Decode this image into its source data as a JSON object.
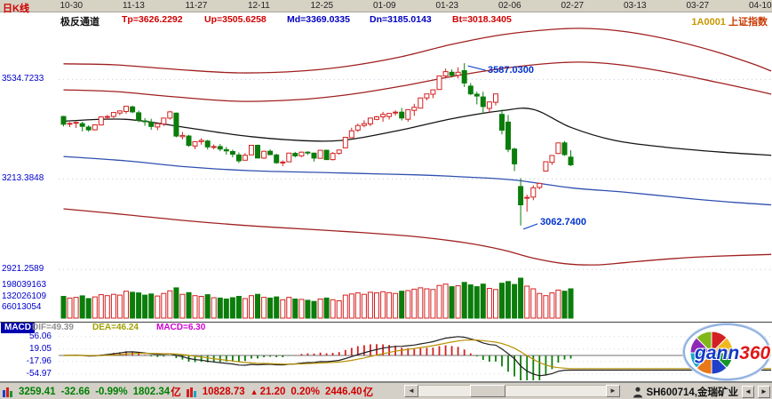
{
  "header": {
    "chart_type_label": "日K线",
    "index_code": "1A0001",
    "index_name": "上证指数"
  },
  "indicator_bar": {
    "name": "极反通道",
    "values": [
      {
        "label": "Tp=3626.2292",
        "color": "#d00000"
      },
      {
        "label": "Up=3505.6258",
        "color": "#d00000"
      },
      {
        "label": "Md=3369.0335",
        "color": "#0000c0"
      },
      {
        "label": "Dn=3185.0143",
        "color": "#0000c0"
      },
      {
        "label": "Bt=3018.3405",
        "color": "#d00000"
      }
    ]
  },
  "annotations": {
    "high": "3587.0300",
    "low": "3062.7400"
  },
  "macd_panel": {
    "label": "MACD",
    "dif_label": "DIF=49.39",
    "dea_label": "DEA=46.24",
    "macd_label": "MACD=6.30"
  },
  "status_bar": {
    "index1": {
      "price": "3259.41",
      "change": "-32.66",
      "pct": "-0.99%",
      "amount": "1802.34",
      "unit": "亿"
    },
    "index2": {
      "price": "10828.73",
      "arrow": "▲",
      "change": "21.20",
      "pct": "0.20%",
      "amount": "2446.40",
      "unit": "亿"
    },
    "scrollbar": {
      "left_arrow": "◄",
      "right_arrow": "►"
    },
    "stock": "SH600714,金瑞矿业",
    "nav_buttons": {
      "prev": "◄",
      "next": "►"
    }
  },
  "logo": {
    "text1": "gann",
    "text2": "360",
    "wheel_colors": [
      "#d42020",
      "#f0b820",
      "#18962e",
      "#2040c8",
      "#e87818",
      "#18a8c8",
      "#9028b8",
      "#80b818"
    ]
  },
  "chart_data": {
    "type": "candlestick",
    "title": "1A0001 上证指数 日K线",
    "tick_dates": [
      "10-30",
      "11-13",
      "11-27",
      "12-11",
      "12-25",
      "01-09",
      "01-23",
      "02-06",
      "02-27",
      "03-13",
      "03-27",
      "04-10"
    ],
    "price_ticks": [
      3534.7233,
      3213.3848,
      2921.2589
    ],
    "volume_ticks": [
      198039163,
      132026109,
      66013054
    ],
    "macd_ticks": [
      56.06,
      19.05,
      -17.96,
      -54.97
    ],
    "ylim": [
      2896,
      3705
    ],
    "volume_ylim": [
      0,
      240000000
    ],
    "macd_ylim": [
      -80,
      90
    ],
    "annotated_high": 3587.03,
    "annotated_low": 3062.74,
    "legend": "极反通道: Tp/Up/Md/Dn/Bt channel lines over daily candles, volume and MACD subpanels",
    "columns": [
      "open",
      "high",
      "low",
      "close",
      "volume"
    ],
    "candles": [
      [
        3415,
        3417,
        3383,
        3390,
        128000000.0
      ],
      [
        3390,
        3397,
        3381,
        3393,
        118000000.0
      ],
      [
        3395,
        3399,
        3378,
        3396,
        122000000.0
      ],
      [
        3392,
        3398,
        3367,
        3383,
        131000000.0
      ],
      [
        3381,
        3387,
        3366,
        3372,
        115000000.0
      ],
      [
        3372,
        3389,
        3370,
        3388,
        125000000.0
      ],
      [
        3388,
        3414,
        3386,
        3414,
        138000000.0
      ],
      [
        3412,
        3420,
        3405,
        3415,
        132000000.0
      ],
      [
        3415,
        3429,
        3410,
        3428,
        140000000.0
      ],
      [
        3426,
        3434,
        3419,
        3433,
        135000000.0
      ],
      [
        3431,
        3449,
        3424,
        3448,
        158000000.0
      ],
      [
        3446,
        3450,
        3426,
        3430,
        152000000.0
      ],
      [
        3427,
        3434,
        3397,
        3403,
        148000000.0
      ],
      [
        3401,
        3410,
        3385,
        3399,
        135000000.0
      ],
      [
        3397,
        3408,
        3372,
        3383,
        142000000.0
      ],
      [
        3381,
        3393,
        3371,
        3392,
        130000000.0
      ],
      [
        3391,
        3411,
        3384,
        3410,
        145000000.0
      ],
      [
        3410,
        3433,
        3405,
        3430,
        160000000.0
      ],
      [
        3426,
        3428,
        3348,
        3352,
        178000000.0
      ],
      [
        3350,
        3365,
        3341,
        3354,
        140000000.0
      ],
      [
        3352,
        3356,
        3317,
        3322,
        150000000.0
      ],
      [
        3320,
        3335,
        3310,
        3334,
        132000000.0
      ],
      [
        3334,
        3345,
        3324,
        3338,
        128000000.0
      ],
      [
        3336,
        3340,
        3309,
        3317,
        138000000.0
      ],
      [
        3317,
        3325,
        3309,
        3318,
        120000000.0
      ],
      [
        3318,
        3326,
        3303,
        3310,
        118000000.0
      ],
      [
        3308,
        3317,
        3292,
        3304,
        112000000.0
      ],
      [
        3302,
        3308,
        3283,
        3293,
        120000000.0
      ],
      [
        3291,
        3299,
        3265,
        3272,
        128000000.0
      ],
      [
        3274,
        3297,
        3274,
        3290,
        115000000.0
      ],
      [
        3291,
        3323,
        3291,
        3322,
        132000000.0
      ],
      [
        3322,
        3324,
        3280,
        3281,
        140000000.0
      ],
      [
        3281,
        3305,
        3278,
        3303,
        122000000.0
      ],
      [
        3303,
        3309,
        3290,
        3292,
        118000000.0
      ],
      [
        3291,
        3295,
        3262,
        3266,
        125000000.0
      ],
      [
        3266,
        3273,
        3255,
        3268,
        108000000.0
      ],
      [
        3269,
        3298,
        3269,
        3297,
        122000000.0
      ],
      [
        3296,
        3301,
        3283,
        3288,
        112000000.0
      ],
      [
        3288,
        3302,
        3284,
        3300,
        110000000.0
      ],
      [
        3300,
        3303,
        3291,
        3297,
        105000000.0
      ],
      [
        3297,
        3298,
        3270,
        3281,
        98000000.0
      ],
      [
        3280,
        3306,
        3279,
        3306,
        112000000.0
      ],
      [
        3306,
        3308,
        3275,
        3276,
        118000000.0
      ],
      [
        3276,
        3300,
        3273,
        3296,
        108000000.0
      ],
      [
        3296,
        3308,
        3292,
        3307,
        102000000.0
      ],
      [
        3314,
        3349,
        3314,
        3348,
        135000000.0
      ],
      [
        3347,
        3379,
        3345,
        3369,
        142000000.0
      ],
      [
        3371,
        3392,
        3365,
        3386,
        148000000.0
      ],
      [
        3386,
        3403,
        3380,
        3392,
        140000000.0
      ],
      [
        3391,
        3412,
        3384,
        3410,
        152000000.0
      ],
      [
        3406,
        3417,
        3403,
        3414,
        148000000.0
      ],
      [
        3414,
        3430,
        3398,
        3422,
        155000000.0
      ],
      [
        3415,
        3426,
        3405,
        3425,
        150000000.0
      ],
      [
        3428,
        3435,
        3418,
        3429,
        145000000.0
      ],
      [
        3429,
        3443,
        3402,
        3410,
        158000000.0
      ],
      [
        3406,
        3437,
        3398,
        3437,
        162000000.0
      ],
      [
        3435,
        3456,
        3417,
        3445,
        170000000.0
      ],
      [
        3442,
        3475,
        3441,
        3475,
        178000000.0
      ],
      [
        3475,
        3488,
        3467,
        3488,
        172000000.0
      ],
      [
        3487,
        3502,
        3474,
        3501,
        168000000.0
      ],
      [
        3502,
        3547,
        3502,
        3546,
        192000000.0
      ],
      [
        3546,
        3570,
        3542,
        3560,
        200000000.0
      ],
      [
        3558,
        3567,
        3541,
        3548,
        185000000.0
      ],
      [
        3548,
        3574,
        3538,
        3558,
        190000000.0
      ],
      [
        3563,
        3587,
        3510,
        3523,
        210000000.0
      ],
      [
        3513,
        3523,
        3484,
        3488,
        195000000.0
      ],
      [
        3487,
        3495,
        3454,
        3481,
        185000000.0
      ],
      [
        3478,
        3495,
        3424,
        3447,
        200000000.0
      ],
      [
        3441,
        3463,
        3426,
        3462,
        175000000.0
      ],
      [
        3461,
        3488,
        3451,
        3488,
        168000000.0
      ],
      [
        3422,
        3437,
        3357,
        3371,
        205000000.0
      ],
      [
        3397,
        3420,
        3300,
        3309,
        215000000.0
      ],
      [
        3310,
        3314,
        3239,
        3262,
        198000000.0
      ],
      [
        3189,
        3216,
        3063,
        3130,
        235000000.0
      ],
      [
        3151,
        3163,
        3108,
        3154,
        188000000.0
      ],
      [
        3155,
        3193,
        3145,
        3185,
        172000000.0
      ],
      [
        3186,
        3201,
        3180,
        3199,
        145000000.0
      ],
      [
        3239,
        3269,
        3239,
        3269,
        132000000.0
      ],
      [
        3267,
        3290,
        3259,
        3289,
        148000000.0
      ],
      [
        3296,
        3330,
        3294,
        3330,
        165000000.0
      ],
      [
        3330,
        3336,
        3288,
        3292,
        158000000.0
      ],
      [
        3284,
        3306,
        3255,
        3259,
        172000000.0
      ]
    ],
    "channel_lines": {
      "Tp": {
        "color": "#a02020",
        "points": [
          [
            0,
            3585
          ],
          [
            8,
            3582
          ],
          [
            18,
            3567
          ],
          [
            28,
            3556
          ],
          [
            38,
            3562
          ],
          [
            46,
            3579
          ],
          [
            54,
            3608
          ],
          [
            62,
            3648
          ],
          [
            70,
            3679
          ],
          [
            78,
            3696
          ],
          [
            84,
            3699
          ],
          [
            90,
            3688
          ],
          [
            97,
            3662
          ],
          [
            104,
            3625
          ],
          [
            110,
            3585
          ],
          [
            113,
            3562
          ]
        ]
      },
      "Up": {
        "color": "#a02020",
        "points": [
          [
            0,
            3501
          ],
          [
            8,
            3496
          ],
          [
            18,
            3478
          ],
          [
            28,
            3464
          ],
          [
            38,
            3470
          ],
          [
            46,
            3487
          ],
          [
            54,
            3513
          ],
          [
            62,
            3544
          ],
          [
            70,
            3570
          ],
          [
            78,
            3587
          ],
          [
            84,
            3590
          ],
          [
            90,
            3579
          ],
          [
            97,
            3556
          ],
          [
            104,
            3527
          ],
          [
            110,
            3501
          ],
          [
            113,
            3487
          ]
        ]
      },
      "Md": {
        "color": "#151515",
        "points": [
          [
            0,
            3400
          ],
          [
            10,
            3406
          ],
          [
            20,
            3378
          ],
          [
            30,
            3350
          ],
          [
            40,
            3336
          ],
          [
            46,
            3342
          ],
          [
            54,
            3372
          ],
          [
            62,
            3408
          ],
          [
            70,
            3434
          ],
          [
            75,
            3438
          ],
          [
            81,
            3380
          ],
          [
            88,
            3338
          ],
          [
            96,
            3316
          ],
          [
            105,
            3300
          ],
          [
            113,
            3290
          ]
        ]
      },
      "Dn": {
        "color": "#3050b0",
        "points": [
          [
            0,
            3286
          ],
          [
            10,
            3272
          ],
          [
            20,
            3252
          ],
          [
            30,
            3240
          ],
          [
            40,
            3235
          ],
          [
            48,
            3231
          ],
          [
            56,
            3227
          ],
          [
            64,
            3220
          ],
          [
            72,
            3210
          ],
          [
            81,
            3185
          ],
          [
            90,
            3170
          ],
          [
            100,
            3150
          ],
          [
            107,
            3138
          ],
          [
            113,
            3130
          ]
        ]
      },
      "Bt": {
        "color": "#a02020",
        "points": [
          [
            0,
            3117
          ],
          [
            10,
            3098
          ],
          [
            20,
            3078
          ],
          [
            30,
            3062
          ],
          [
            40,
            3050
          ],
          [
            48,
            3040
          ],
          [
            56,
            3028
          ],
          [
            64,
            3008
          ],
          [
            70,
            2985
          ],
          [
            75,
            2958
          ],
          [
            80,
            2940
          ],
          [
            85,
            2936
          ],
          [
            90,
            2944
          ],
          [
            97,
            2956
          ],
          [
            104,
            2964
          ],
          [
            113,
            2970
          ]
        ]
      }
    },
    "macd": {
      "fast": 12,
      "slow": 26,
      "signal": 9,
      "bar_scale": 2
    },
    "style": {
      "up_color": "#d42020",
      "down_color": "#0b7d0b",
      "axis_text_color": "#0000cc"
    }
  }
}
